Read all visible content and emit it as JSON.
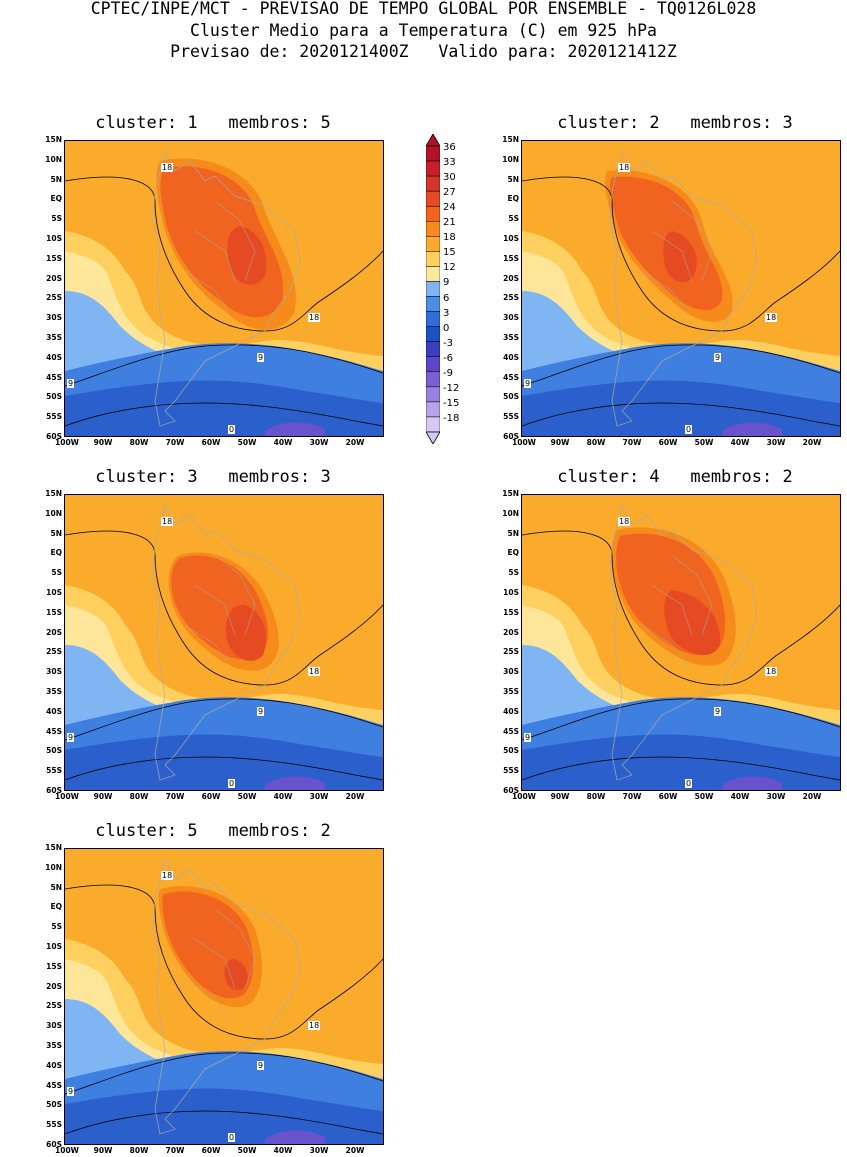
{
  "header": {
    "line1": "CPTEC/INPE/MCT - PREVISAO DE TEMPO GLOBAL POR ENSEMBLE - TQ0126L028",
    "line2": "Cluster Medio para a Temperatura (C) em 925 hPa",
    "line3": "Previsao de: 2020121400Z   Valido para: 2020121412Z"
  },
  "panels": [
    {
      "title": "cluster: 1   membros: 5"
    },
    {
      "title": "cluster: 2   membros: 3"
    },
    {
      "title": "cluster: 3   membros: 3"
    },
    {
      "title": "cluster: 4   membros: 2"
    },
    {
      "title": "cluster: 5   membros: 2"
    }
  ],
  "axes": {
    "lat": [
      "15N",
      "10N",
      "5N",
      "EQ",
      "5S",
      "10S",
      "15S",
      "20S",
      "25S",
      "30S",
      "35S",
      "40S",
      "45S",
      "50S",
      "55S",
      "60S"
    ],
    "lon": [
      "100W",
      "90W",
      "80W",
      "70W",
      "60W",
      "50W",
      "40W",
      "30W",
      "20W"
    ]
  },
  "contour_labels": {
    "c18": "18",
    "c9": "9",
    "c0": "0"
  },
  "colorbar": {
    "labels": [
      "36",
      "33",
      "30",
      "27",
      "24",
      "21",
      "18",
      "15",
      "12",
      "9",
      "6",
      "3",
      "0",
      "-3",
      "-6",
      "-9",
      "-12",
      "-15",
      "-18"
    ],
    "colors": [
      "#b2122a",
      "#c8202b",
      "#d8352a",
      "#e64a22",
      "#f0641c",
      "#f68a1a",
      "#fbab2c",
      "#fdd060",
      "#fbe99a",
      "#7eb5f2",
      "#4a8ee8",
      "#2f6ed8",
      "#1f4fc4",
      "#3a3fc0",
      "#5a48c8",
      "#7a5ed4",
      "#9a7ee0",
      "#b8a2ea",
      "#d6c8f4"
    ]
  }
}
